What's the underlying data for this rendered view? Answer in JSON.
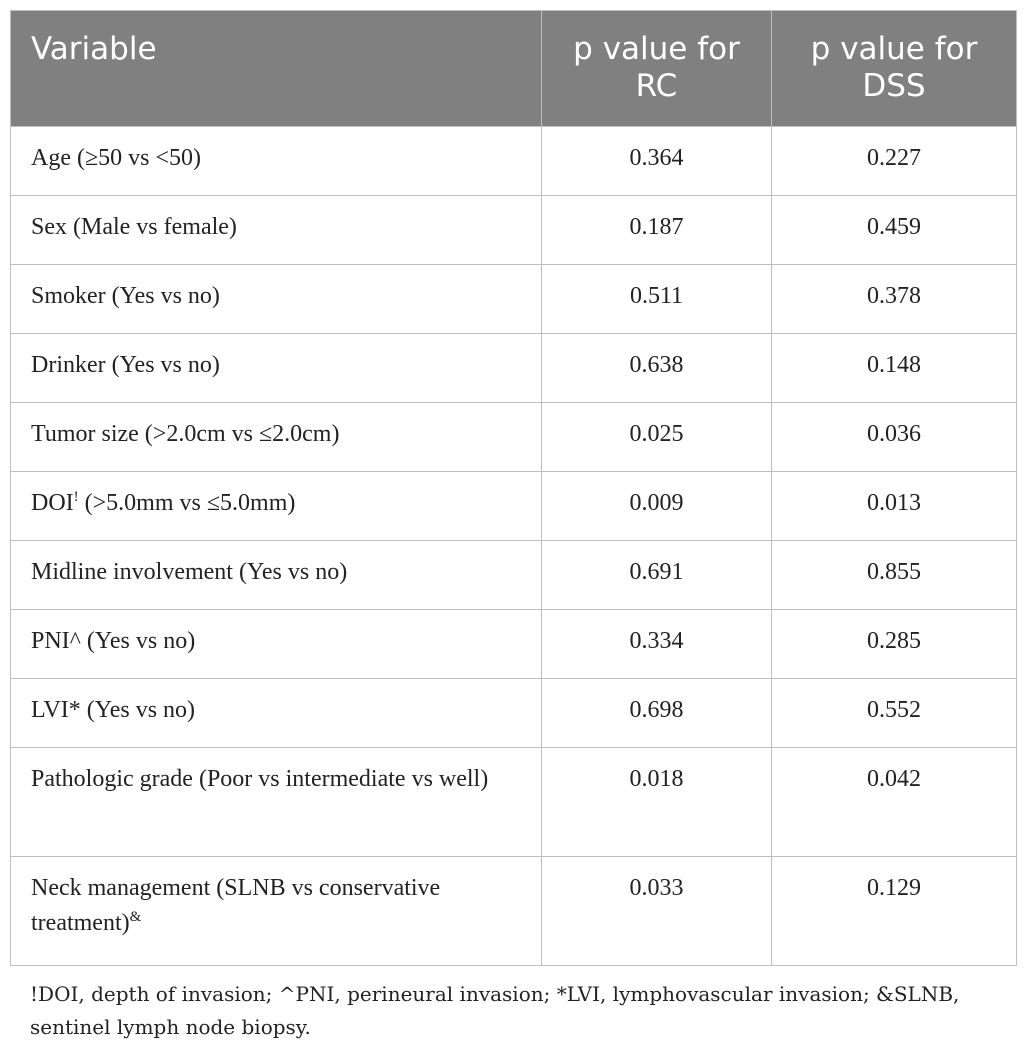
{
  "table": {
    "headers": [
      "Variable",
      "p value for RC",
      "p value for DSS"
    ],
    "rows": [
      {
        "variable": "Age (≥50 vs <50)",
        "sup": "",
        "suffix": "",
        "rc": "0.364",
        "dss": "0.227"
      },
      {
        "variable": "Sex (Male vs female)",
        "sup": "",
        "suffix": "",
        "rc": "0.187",
        "dss": "0.459"
      },
      {
        "variable": "Smoker (Yes vs no)",
        "sup": "",
        "suffix": "",
        "rc": "0.511",
        "dss": "0.378"
      },
      {
        "variable": "Drinker (Yes vs no)",
        "sup": "",
        "suffix": "",
        "rc": "0.638",
        "dss": "0.148"
      },
      {
        "variable": "Tumor size (>2.0cm vs ≤2.0cm)",
        "sup": "",
        "suffix": "",
        "rc": "0.025",
        "dss": "0.036"
      },
      {
        "variable": "DOI",
        "sup": "!",
        "suffix": " (>5.0mm vs ≤5.0mm)",
        "rc": "0.009",
        "dss": "0.013"
      },
      {
        "variable": "Midline involvement (Yes vs no)",
        "sup": "",
        "suffix": "",
        "rc": "0.691",
        "dss": "0.855"
      },
      {
        "variable": "PNI^ (Yes vs no)",
        "sup": "",
        "suffix": "",
        "rc": "0.334",
        "dss": "0.285"
      },
      {
        "variable": "LVI* (Yes vs no)",
        "sup": "",
        "suffix": "",
        "rc": "0.698",
        "dss": "0.552"
      },
      {
        "variable": "Pathologic grade (Poor vs intermediate vs well)",
        "sup": "",
        "suffix": "",
        "rc": "0.018",
        "dss": "0.042"
      },
      {
        "variable": "Neck management (SLNB vs conservative treatment)",
        "sup": "&",
        "suffix": "",
        "rc": "0.033",
        "dss": "0.129"
      }
    ]
  },
  "footnote": "!DOI, depth of invasion; ^PNI, perineural invasion; *LVI, lymphovascular invasion; &SLNB, sentinel lymph node biopsy."
}
